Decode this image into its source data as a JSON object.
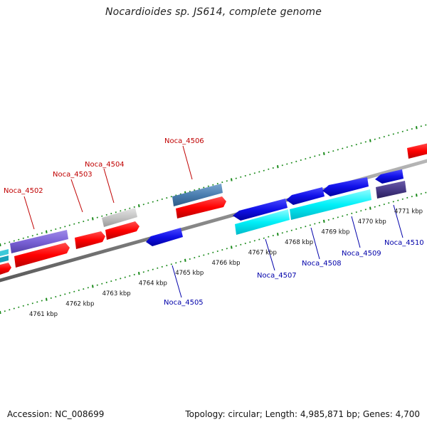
{
  "title": "Nocardioides sp. JS614, complete genome",
  "footer": {
    "accession": "Accession: NC_008699",
    "stats": "Topology: circular; Length: 4,985,871 bp; Genes: 4,700"
  },
  "colors": {
    "top_label": "#c00000",
    "bottom_label": "#0000aa",
    "tick": "#1a8a1a",
    "backbone": "#8a8a8a"
  },
  "kbp_ticks": [
    {
      "label": "4761 kbp"
    },
    {
      "label": "4762 kbp"
    },
    {
      "label": "4763 kbp"
    },
    {
      "label": "4764 kbp"
    },
    {
      "label": "4765 kbp"
    },
    {
      "label": "4766 kbp"
    },
    {
      "label": "4767 kbp"
    },
    {
      "label": "4768 kbp"
    },
    {
      "label": "4769 kbp"
    },
    {
      "label": "4770 kbp"
    },
    {
      "label": "4771 kbp"
    }
  ],
  "gene_labels": {
    "top": [
      "Noca_4502",
      "Noca_4503",
      "Noca_4504",
      "Noca_4506"
    ],
    "bottom": [
      "Noca_4505",
      "Noca_4507",
      "Noca_4508",
      "Noca_4509",
      "Noca_4510"
    ]
  }
}
